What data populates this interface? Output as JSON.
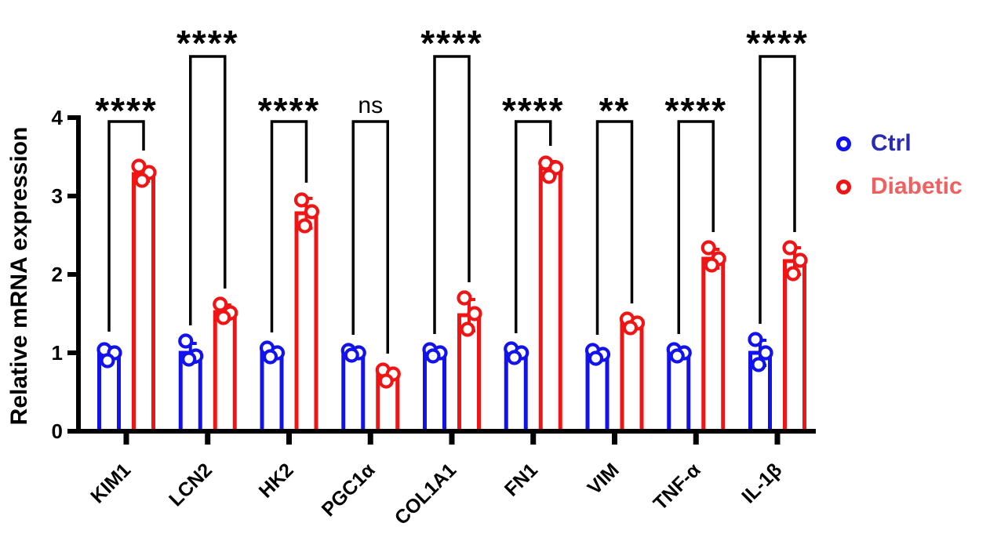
{
  "figure": {
    "background_color": "#FFFFFF",
    "axis_color": "#000000"
  },
  "legend": {
    "position": "right",
    "items": [
      {
        "label": "Ctrl",
        "symbol": "open-circle",
        "symbol_color": "#1212EE",
        "label_color": "#2B2BB0"
      },
      {
        "label": "Diabetic",
        "symbol": "open-circle",
        "symbol_color": "#F01414",
        "label_color": "#F06060"
      }
    ]
  },
  "chart_data": {
    "type": "bar",
    "title": "",
    "xlabel": "",
    "ylabel": "Relative mRNA expression",
    "ylim": [
      0,
      4
    ],
    "yticks": [
      0,
      1,
      2,
      3,
      4
    ],
    "grid": false,
    "legend_position": "right",
    "bar_style": "open-bars-with-scatter-points-and-sd-error-bars",
    "categories": [
      "KIM1",
      "LCN2",
      "HK2",
      "PGC1α",
      "COL1A1",
      "FN1",
      "VIM",
      "TNF-α",
      "IL-1β"
    ],
    "series": [
      {
        "name": "Ctrl",
        "color": "#1212EE",
        "means": [
          1.0,
          1.0,
          1.0,
          1.0,
          1.0,
          1.0,
          0.98,
          1.0,
          1.0
        ],
        "sd": [
          0.07,
          0.12,
          0.06,
          0.03,
          0.04,
          0.05,
          0.05,
          0.04,
          0.16
        ],
        "points": [
          [
            1.04,
            1.0,
            0.9
          ],
          [
            1.15,
            0.96,
            0.92
          ],
          [
            1.06,
            1.0,
            0.95
          ],
          [
            1.03,
            1.0,
            0.97
          ],
          [
            1.04,
            1.0,
            0.96
          ],
          [
            1.05,
            1.0,
            0.94
          ],
          [
            1.03,
            0.98,
            0.93
          ],
          [
            1.04,
            1.0,
            0.96
          ],
          [
            1.17,
            1.0,
            0.85
          ]
        ]
      },
      {
        "name": "Diabetic",
        "color": "#F01414",
        "means": [
          3.28,
          1.52,
          2.78,
          0.72,
          1.48,
          3.35,
          1.37,
          2.2,
          2.17
        ],
        "sd": [
          0.09,
          0.09,
          0.19,
          0.07,
          0.2,
          0.09,
          0.06,
          0.12,
          0.17
        ],
        "points": [
          [
            3.38,
            3.3,
            3.2
          ],
          [
            1.62,
            1.51,
            1.45
          ],
          [
            2.95,
            2.8,
            2.62
          ],
          [
            0.78,
            0.73,
            0.64
          ],
          [
            1.7,
            1.5,
            1.3
          ],
          [
            3.42,
            3.36,
            3.25
          ],
          [
            1.43,
            1.38,
            1.32
          ],
          [
            2.34,
            2.2,
            2.12
          ],
          [
            2.34,
            2.18,
            2.01
          ]
        ]
      }
    ],
    "significance": [
      {
        "category": "KIM1",
        "label": "****",
        "bracket": "short"
      },
      {
        "category": "LCN2",
        "label": "****",
        "bracket": "tall"
      },
      {
        "category": "HK2",
        "label": "****",
        "bracket": "short"
      },
      {
        "category": "PGC1α",
        "label": "ns",
        "bracket": "short"
      },
      {
        "category": "COL1A1",
        "label": "****",
        "bracket": "tall"
      },
      {
        "category": "FN1",
        "label": "****",
        "bracket": "short"
      },
      {
        "category": "VIM",
        "label": "**",
        "bracket": "short"
      },
      {
        "category": "TNF-α",
        "label": "****",
        "bracket": "short"
      },
      {
        "category": "IL-1β",
        "label": "****",
        "bracket": "tall"
      }
    ]
  }
}
